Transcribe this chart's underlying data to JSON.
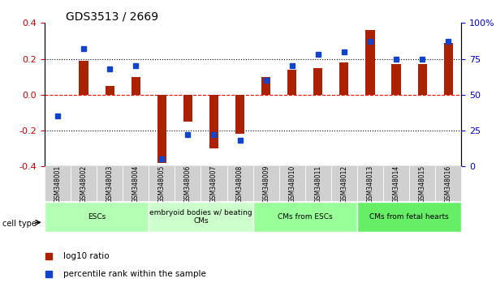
{
  "title": "GDS3513 / 2669",
  "samples": [
    "GSM348001",
    "GSM348002",
    "GSM348003",
    "GSM348004",
    "GSM348005",
    "GSM348006",
    "GSM348007",
    "GSM348008",
    "GSM348009",
    "GSM348010",
    "GSM348011",
    "GSM348012",
    "GSM348013",
    "GSM348014",
    "GSM348015",
    "GSM348016"
  ],
  "log10_ratio": [
    0.0,
    0.19,
    0.05,
    0.1,
    -0.38,
    -0.15,
    -0.3,
    -0.22,
    0.1,
    0.14,
    0.15,
    0.18,
    0.36,
    0.17,
    0.17,
    0.29
  ],
  "percentile_rank": [
    35,
    82,
    68,
    70,
    5,
    22,
    22,
    18,
    60,
    70,
    78,
    80,
    87,
    75,
    75,
    87
  ],
  "cell_type_groups": [
    {
      "label": "ESCs",
      "start": 0,
      "end": 3,
      "color": "#b3ffb3"
    },
    {
      "label": "embryoid bodies w/ beating\nCMs",
      "start": 4,
      "end": 7,
      "color": "#ccffcc"
    },
    {
      "label": "CMs from ESCs",
      "start": 8,
      "end": 11,
      "color": "#99ff99"
    },
    {
      "label": "CMs from fetal hearts",
      "start": 12,
      "end": 15,
      "color": "#66ee66"
    }
  ],
  "ylim": [
    -0.4,
    0.4
  ],
  "yticks_left": [
    -0.4,
    -0.2,
    0.0,
    0.2,
    0.4
  ],
  "yticks_right": [
    0,
    25,
    50,
    75,
    100
  ],
  "right_tick_labels": [
    "0",
    "25",
    "50",
    "75",
    "100%"
  ],
  "bar_color": "#aa2200",
  "dot_color": "#1144cc",
  "axis_label_color_left": "#cc0000",
  "axis_label_color_right": "#0000cc",
  "legend_labels": [
    "log10 ratio",
    "percentile rank within the sample"
  ],
  "background_color": "#ffffff"
}
